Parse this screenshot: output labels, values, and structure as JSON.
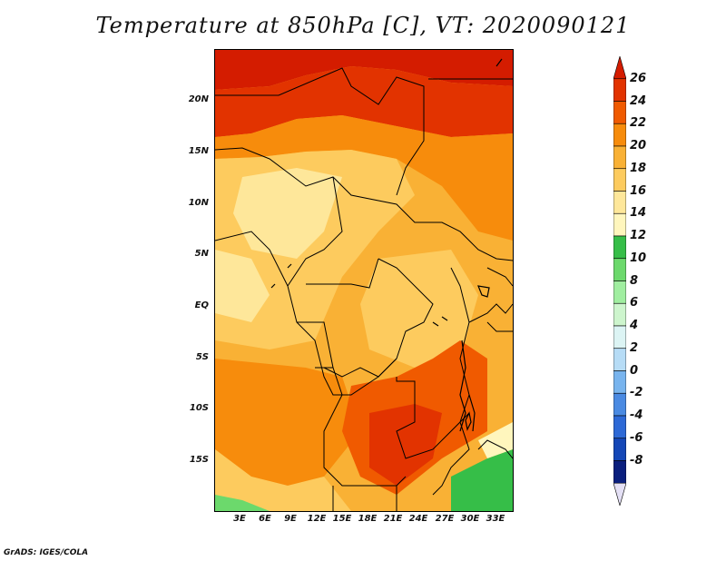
{
  "title": "Temperature at 850hPa [C], VT: 2020090121",
  "credit": "GrADS: IGES/COLA",
  "map": {
    "region": "Central and Southern Africa",
    "lat_labels": [
      "20N",
      "15N",
      "10N",
      "5N",
      "EQ",
      "5S",
      "10S",
      "15S"
    ],
    "lon_labels": [
      "3E",
      "6E",
      "9E",
      "12E",
      "15E",
      "18E",
      "21E",
      "24E",
      "27E",
      "30E",
      "33E"
    ]
  },
  "colorbar": {
    "labels": [
      "26",
      "24",
      "22",
      "20",
      "18",
      "16",
      "14",
      "12",
      "10",
      "8",
      "6",
      "4",
      "2",
      "0",
      "-2",
      "-4",
      "-6",
      "-8"
    ],
    "colors": [
      "#d41c00",
      "#e23300",
      "#f05a00",
      "#f78c0c",
      "#f9b135",
      "#fdcb5e",
      "#fee79a",
      "#fff6bd",
      "#36be48",
      "#6cd96c",
      "#a0eea0",
      "#cdf5cd",
      "#dcf4f4",
      "#b6dcf6",
      "#78b4ee",
      "#4a8ae2",
      "#2d69d6",
      "#1447b7",
      "#0a1f7e",
      "#e4e0f5"
    ]
  },
  "legend": {
    "units": "C"
  }
}
